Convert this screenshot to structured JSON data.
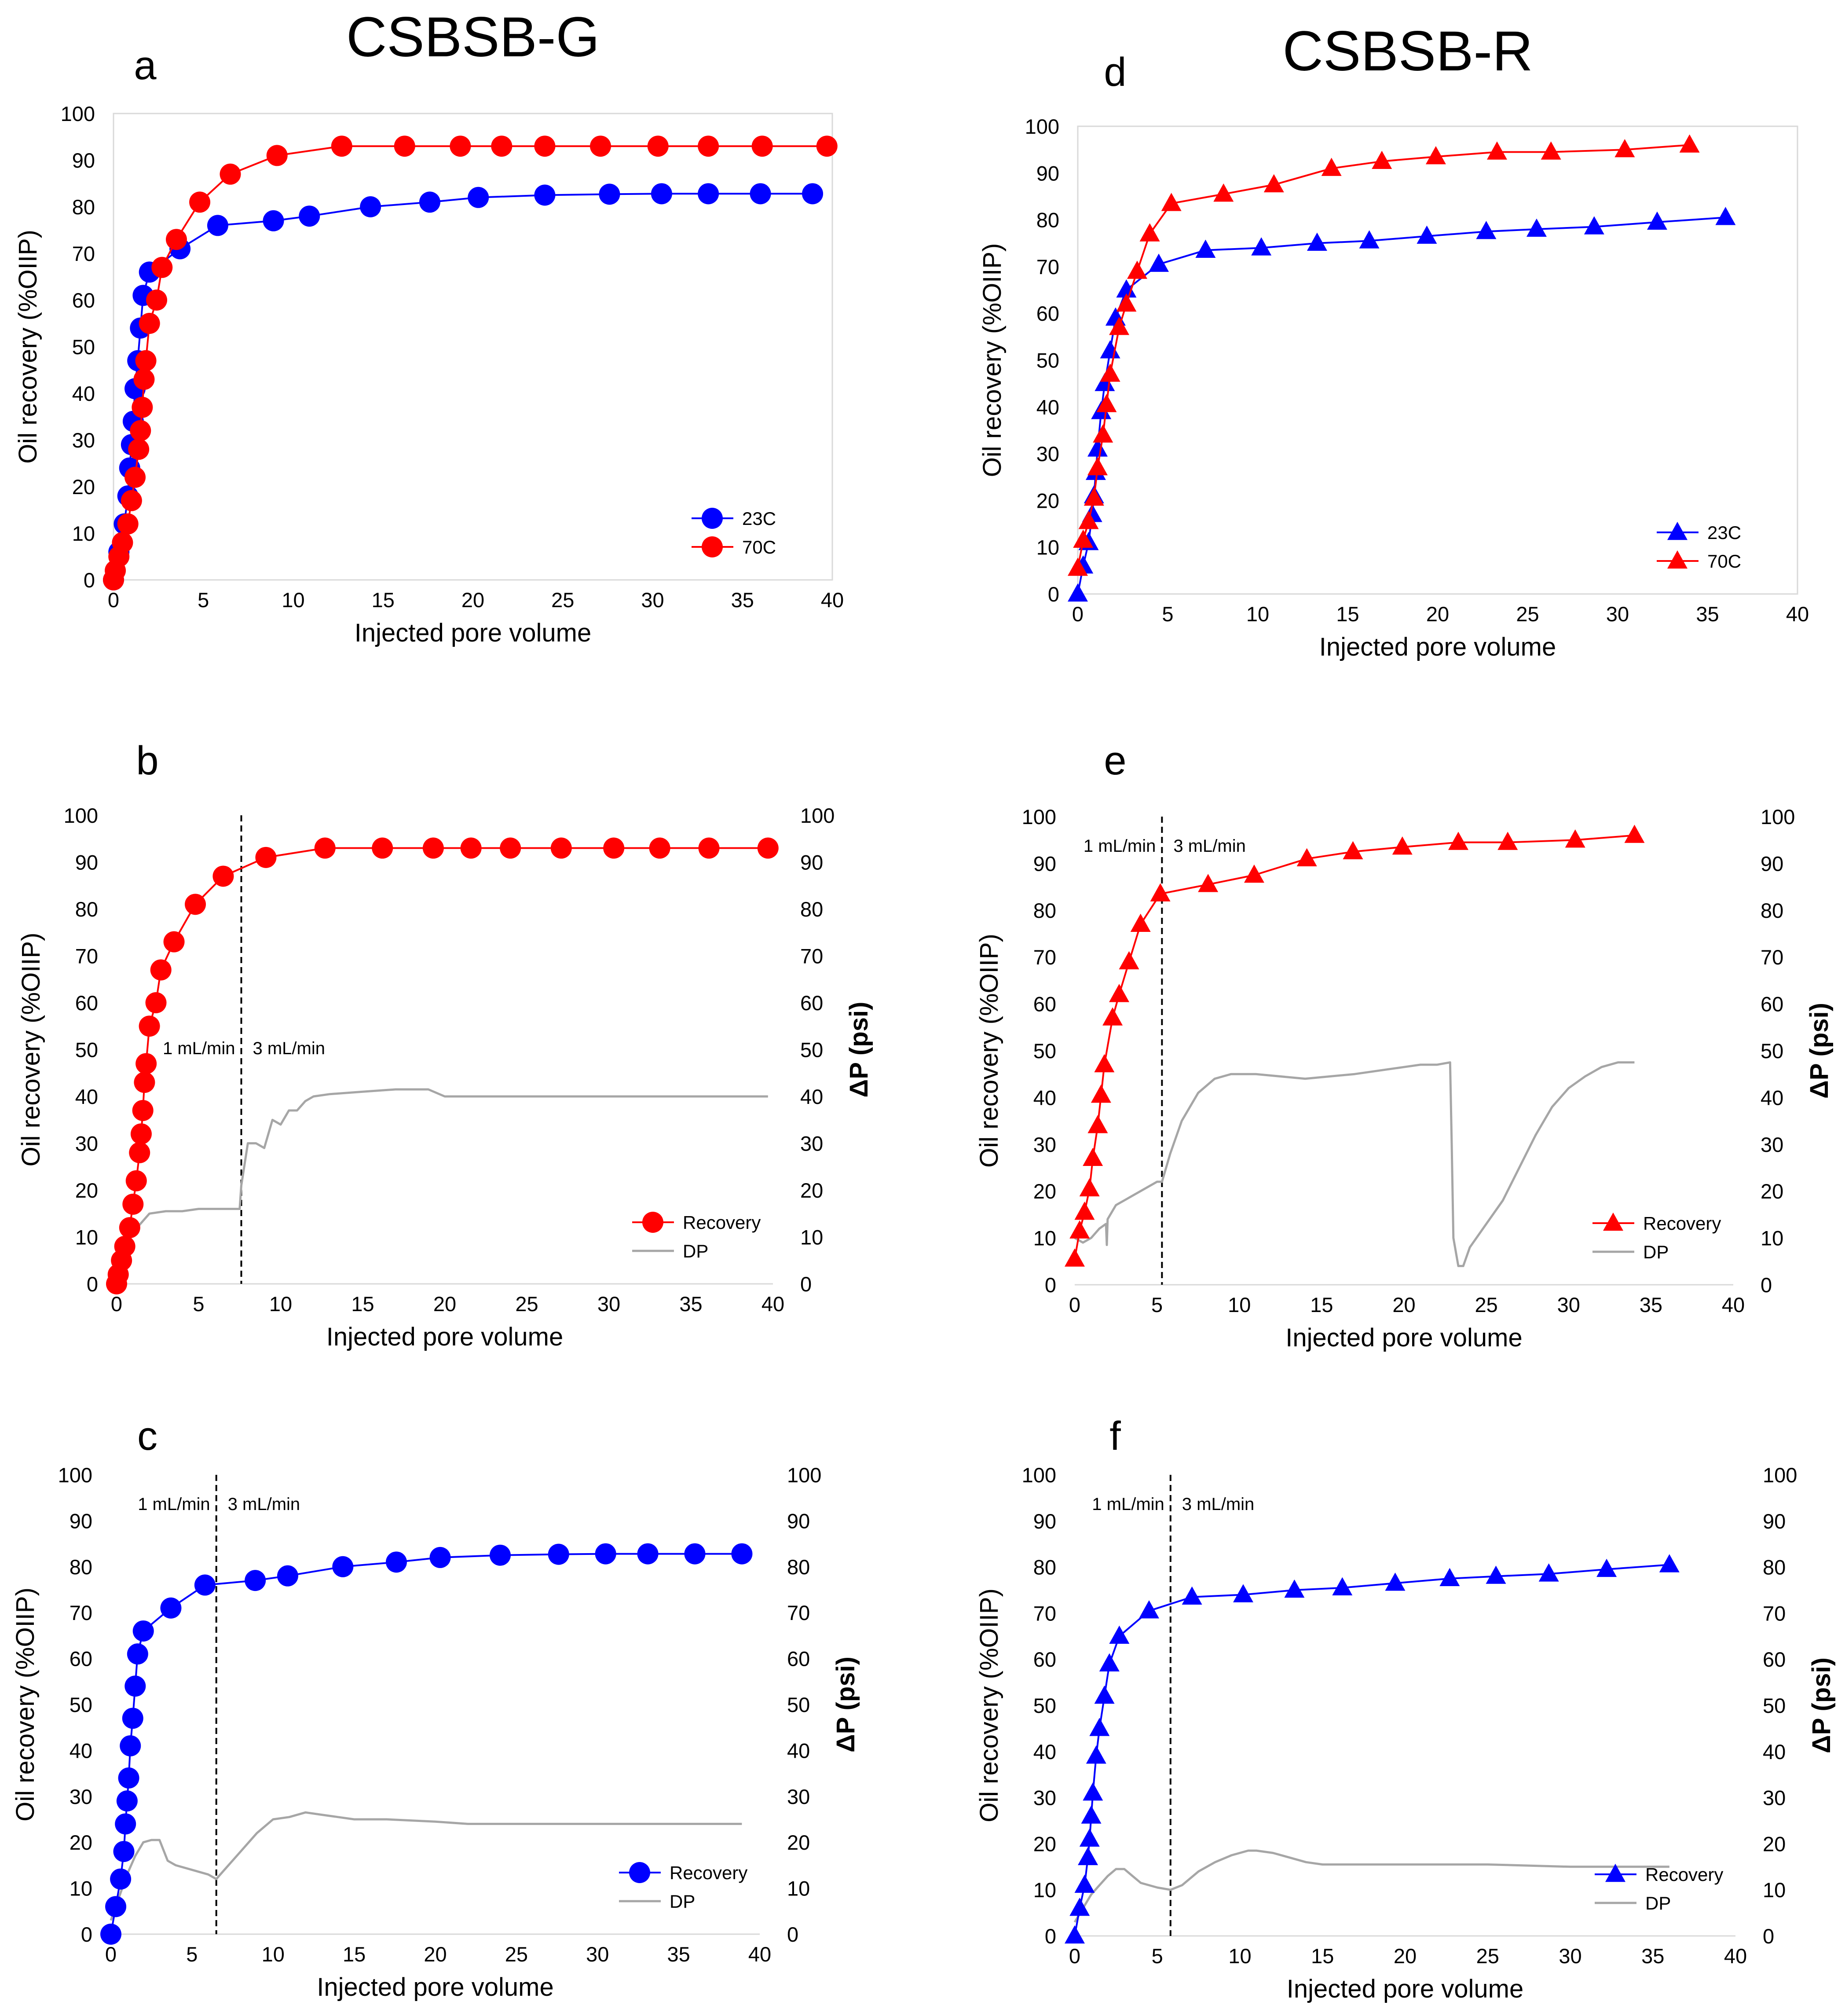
{
  "figure": {
    "left_heading": "CSBSB-G",
    "right_heading": "CSBSB-R"
  },
  "chart_data": [
    {
      "id": "a",
      "type": "line",
      "panel_label": "a",
      "xlabel": "Injected pore volume",
      "ylabel": "Oil recovery (%OIIP)",
      "xlim": [
        0,
        40
      ],
      "xticks": [
        0,
        5,
        10,
        15,
        20,
        25,
        30,
        35,
        40
      ],
      "ylim": [
        0,
        100
      ],
      "yticks": [
        0,
        10,
        20,
        30,
        40,
        50,
        60,
        70,
        80,
        90,
        100
      ],
      "legend": "bottom-right",
      "series": [
        {
          "name": "23C",
          "color": "#0000ff",
          "marker": "circle",
          "x": [
            0,
            0.3,
            0.6,
            0.8,
            0.9,
            1.0,
            1.1,
            1.2,
            1.35,
            1.5,
            1.65,
            2.0,
            3.7,
            5.8,
            8.9,
            10.9,
            14.3,
            17.6,
            20.3,
            24.0,
            27.6,
            30.5,
            33.1,
            36.0,
            38.9
          ],
          "y": [
            0,
            6,
            12,
            18,
            24,
            29,
            34,
            41,
            47,
            54,
            61,
            66,
            71,
            76,
            77,
            78,
            80,
            81,
            82,
            82.5,
            82.7,
            82.8,
            82.8,
            82.8,
            82.8
          ]
        },
        {
          "name": "70C",
          "color": "#ff0000",
          "marker": "circle",
          "x": [
            0,
            0.1,
            0.3,
            0.5,
            0.8,
            1.0,
            1.2,
            1.4,
            1.5,
            1.6,
            1.7,
            1.8,
            2.0,
            2.4,
            2.7,
            3.5,
            4.8,
            6.5,
            9.1,
            12.7,
            16.2,
            19.3,
            21.6,
            24.0,
            27.1,
            30.3,
            33.1,
            36.1,
            39.7
          ],
          "y": [
            0,
            2,
            5,
            8,
            12,
            17,
            22,
            28,
            32,
            37,
            43,
            47,
            55,
            60,
            67,
            73,
            81,
            87,
            91,
            93,
            93,
            93,
            93,
            93,
            93,
            93,
            93,
            93,
            93
          ]
        }
      ]
    },
    {
      "id": "b",
      "type": "line",
      "panel_label": "b",
      "xlabel": "Injected pore volume",
      "ylabel": "Oil recovery (%OIIP)",
      "y2label": "ΔP (psi)",
      "xlim": [
        0,
        40
      ],
      "xticks": [
        0,
        5,
        10,
        15,
        20,
        25,
        30,
        35,
        40
      ],
      "ylim": [
        0,
        100
      ],
      "yticks": [
        0,
        10,
        20,
        30,
        40,
        50,
        60,
        70,
        80,
        90,
        100
      ],
      "y2lim": [
        0,
        100
      ],
      "y2ticks": [
        0,
        10,
        20,
        30,
        40,
        50,
        60,
        70,
        80,
        90,
        100
      ],
      "vline_x": 7.6,
      "annotations": [
        "1 mL/min",
        "3 mL/min"
      ],
      "legend": "bottom-right",
      "series": [
        {
          "name": "Recovery",
          "color": "#ff0000",
          "marker": "circle",
          "x": [
            0,
            0.1,
            0.3,
            0.5,
            0.8,
            1.0,
            1.2,
            1.4,
            1.5,
            1.6,
            1.7,
            1.8,
            2.0,
            2.4,
            2.7,
            3.5,
            4.8,
            6.5,
            9.1,
            12.7,
            16.2,
            19.3,
            21.6,
            24.0,
            27.1,
            30.3,
            33.1,
            36.1,
            39.7
          ],
          "y": [
            0,
            2,
            5,
            8,
            12,
            17,
            22,
            28,
            32,
            37,
            43,
            47,
            55,
            60,
            67,
            73,
            81,
            87,
            91,
            93,
            93,
            93,
            93,
            93,
            93,
            93,
            93,
            93,
            93
          ]
        },
        {
          "name": "DP",
          "color": "#a6a6a6",
          "marker": "none",
          "axis": "y2",
          "x": [
            0,
            0.5,
            1.0,
            1.5,
            2.0,
            3.0,
            4.0,
            5.0,
            6.0,
            7.0,
            7.5,
            7.6,
            8.0,
            8.5,
            9.0,
            9.5,
            10.0,
            10.5,
            11.0,
            11.5,
            12.0,
            13.0,
            15.0,
            17.0,
            19.0,
            20.0,
            25.0,
            30.0,
            35.0,
            39.7
          ],
          "y": [
            6,
            9,
            11,
            13,
            15,
            15.5,
            15.5,
            16,
            16,
            16,
            16,
            21,
            30,
            30,
            29,
            35,
            34,
            37,
            37,
            39,
            40,
            40.5,
            41,
            41.5,
            41.5,
            40,
            40,
            40,
            40,
            40
          ]
        }
      ]
    },
    {
      "id": "c",
      "type": "line",
      "panel_label": "c",
      "xlabel": "Injected pore volume",
      "ylabel": "Oil recovery (%OIIP)",
      "y2label": "ΔP (psi)",
      "xlim": [
        0,
        40
      ],
      "xticks": [
        0,
        5,
        10,
        15,
        20,
        25,
        30,
        35,
        40
      ],
      "ylim": [
        0,
        100
      ],
      "yticks": [
        0,
        10,
        20,
        30,
        40,
        50,
        60,
        70,
        80,
        90,
        100
      ],
      "y2lim": [
        0,
        100
      ],
      "y2ticks": [
        0,
        10,
        20,
        30,
        40,
        50,
        60,
        70,
        80,
        90,
        100
      ],
      "vline_x": 6.5,
      "annotations": [
        "1 mL/min",
        "3 mL/min"
      ],
      "legend": "bottom-right",
      "series": [
        {
          "name": "Recovery",
          "color": "#0000ff",
          "marker": "circle",
          "x": [
            0,
            0.3,
            0.6,
            0.8,
            0.9,
            1.0,
            1.1,
            1.2,
            1.35,
            1.5,
            1.65,
            2.0,
            3.7,
            5.8,
            8.9,
            10.9,
            14.3,
            17.6,
            20.3,
            24.0,
            27.6,
            30.5,
            33.1,
            36.0,
            38.9
          ],
          "y": [
            0,
            6,
            12,
            18,
            24,
            29,
            34,
            41,
            47,
            54,
            61,
            66,
            71,
            76,
            77,
            78,
            80,
            81,
            82,
            82.5,
            82.7,
            82.8,
            82.8,
            82.8,
            82.8
          ]
        },
        {
          "name": "DP",
          "color": "#a6a6a6",
          "marker": "none",
          "axis": "y2",
          "x": [
            0,
            0.5,
            1.0,
            1.5,
            2.0,
            2.5,
            3.0,
            3.5,
            4.0,
            5.0,
            6.0,
            6.5,
            7.0,
            8.0,
            9.0,
            10.0,
            11.0,
            12.0,
            13.0,
            14.0,
            15.0,
            17.0,
            20.0,
            22.0,
            25.0,
            30.0,
            35.0,
            38.9
          ],
          "y": [
            3,
            8,
            13,
            17,
            20,
            20.5,
            20.5,
            16,
            15,
            14,
            13,
            12,
            14,
            18,
            22,
            25,
            25.5,
            26.5,
            26,
            25.5,
            25,
            25,
            24.5,
            24,
            24,
            24,
            24,
            24
          ]
        }
      ]
    },
    {
      "id": "d",
      "type": "line",
      "panel_label": "d",
      "xlabel": "Injected pore volume",
      "ylabel": "Oil recovery (%OIIP)",
      "xlim": [
        0,
        40
      ],
      "xticks": [
        0,
        5,
        10,
        15,
        20,
        25,
        30,
        35,
        40
      ],
      "ylim": [
        0,
        100
      ],
      "yticks": [
        0,
        10,
        20,
        30,
        40,
        50,
        60,
        70,
        80,
        90,
        100
      ],
      "legend": "bottom-right",
      "series": [
        {
          "name": "23C",
          "color": "#0000ff",
          "marker": "triangle",
          "x": [
            0,
            0.3,
            0.6,
            0.8,
            0.9,
            1.0,
            1.1,
            1.3,
            1.5,
            1.8,
            2.1,
            2.7,
            4.5,
            7.1,
            10.2,
            13.3,
            16.2,
            19.4,
            22.7,
            25.5,
            28.7,
            32.2,
            36.0
          ],
          "y": [
            0,
            6,
            11,
            17,
            21,
            26,
            31,
            39,
            45,
            52,
            59,
            65,
            70.5,
            73.5,
            74,
            75,
            75.5,
            76.5,
            77.5,
            78,
            78.5,
            79.5,
            80.5
          ]
        },
        {
          "name": "70C",
          "color": "#ff0000",
          "marker": "triangle",
          "x": [
            0,
            0.3,
            0.6,
            0.9,
            1.1,
            1.4,
            1.6,
            1.8,
            2.3,
            2.7,
            3.3,
            4.0,
            5.2,
            8.1,
            10.9,
            14.1,
            16.9,
            19.9,
            23.3,
            26.3,
            30.4,
            34.0
          ],
          "y": [
            5.5,
            11.5,
            15.5,
            20.5,
            27,
            34,
            40.5,
            47,
            57,
            62,
            69,
            77,
            83.5,
            85.5,
            87.5,
            91,
            92.5,
            93.5,
            94.5,
            94.5,
            95,
            96
          ]
        }
      ]
    },
    {
      "id": "e",
      "type": "line",
      "panel_label": "e",
      "xlabel": "Injected pore volume",
      "ylabel": "Oil recovery (%OIIP)",
      "y2label": "ΔP (psi)",
      "xlim": [
        0,
        40
      ],
      "xticks": [
        0,
        5,
        10,
        15,
        20,
        25,
        30,
        35,
        40
      ],
      "ylim": [
        0,
        100
      ],
      "yticks": [
        0,
        10,
        20,
        30,
        40,
        50,
        60,
        70,
        80,
        90,
        100
      ],
      "y2lim": [
        0,
        100
      ],
      "y2ticks": [
        0,
        10,
        20,
        30,
        40,
        50,
        60,
        70,
        80,
        90,
        100
      ],
      "vline_x": 5.3,
      "annotations": [
        "1 mL/min",
        "3 mL/min"
      ],
      "legend": "bottom-right",
      "series": [
        {
          "name": "Recovery",
          "color": "#ff0000",
          "marker": "triangle",
          "x": [
            0,
            0.3,
            0.6,
            0.9,
            1.1,
            1.4,
            1.6,
            1.8,
            2.3,
            2.7,
            3.3,
            4.0,
            5.2,
            8.1,
            10.9,
            14.1,
            16.9,
            19.9,
            23.3,
            26.3,
            30.4,
            34.0
          ],
          "y": [
            5.5,
            11.5,
            15.5,
            20.5,
            27,
            34,
            40.5,
            47,
            57,
            62,
            69,
            77,
            83.5,
            85.5,
            87.5,
            91,
            92.5,
            93.5,
            94.5,
            94.5,
            95,
            96
          ]
        },
        {
          "name": "DP",
          "color": "#a6a6a6",
          "marker": "none",
          "axis": "y2",
          "x": [
            0,
            0.5,
            1.0,
            1.5,
            1.9,
            1.95,
            2.0,
            2.5,
            3.0,
            3.5,
            4.0,
            4.5,
            5.0,
            5.3,
            5.8,
            6.5,
            7.5,
            8.5,
            9.5,
            11.0,
            14.0,
            17.0,
            20.0,
            21.0,
            22.0,
            22.8,
            22.9,
            23.0,
            23.3,
            23.6,
            24.0,
            25.0,
            26.0,
            27.0,
            28.0,
            29.0,
            30.0,
            31.0,
            32.0,
            33.0,
            34.0
          ],
          "y": [
            10,
            9,
            10,
            12,
            13,
            8.5,
            14,
            17,
            18,
            19,
            20,
            21,
            22,
            22,
            28,
            35,
            41,
            44,
            45,
            45,
            44,
            45,
            46.5,
            47,
            47,
            47.5,
            30,
            10,
            4,
            4,
            8,
            13,
            18,
            25,
            32,
            38,
            42,
            44.5,
            46.5,
            47.5,
            47.5
          ]
        }
      ]
    },
    {
      "id": "f",
      "type": "line",
      "panel_label": "f",
      "xlabel": "Injected pore volume",
      "ylabel": "Oil recovery (%OIIP)",
      "y2label": "ΔP (psi)",
      "xlim": [
        0,
        40
      ],
      "xticks": [
        0,
        5,
        10,
        15,
        20,
        25,
        30,
        35,
        40
      ],
      "ylim": [
        0,
        100
      ],
      "yticks": [
        0,
        10,
        20,
        30,
        40,
        50,
        60,
        70,
        80,
        90,
        100
      ],
      "y2lim": [
        0,
        100
      ],
      "y2ticks": [
        0,
        10,
        20,
        30,
        40,
        50,
        60,
        70,
        80,
        90,
        100
      ],
      "vline_x": 5.8,
      "annotations": [
        "1 mL/min",
        "3 mL/min"
      ],
      "legend": "bottom-right",
      "series": [
        {
          "name": "Recovery",
          "color": "#0000ff",
          "marker": "triangle",
          "x": [
            0,
            0.3,
            0.6,
            0.8,
            0.9,
            1.0,
            1.1,
            1.3,
            1.5,
            1.8,
            2.1,
            2.7,
            4.5,
            7.1,
            10.2,
            13.3,
            16.2,
            19.4,
            22.7,
            25.5,
            28.7,
            32.2,
            36.0
          ],
          "y": [
            0,
            6,
            11,
            17,
            21,
            26,
            31,
            39,
            45,
            52,
            59,
            65,
            70.5,
            73.5,
            74,
            75,
            75.5,
            76.5,
            77.5,
            78,
            78.5,
            79.5,
            80.5
          ]
        },
        {
          "name": "DP",
          "color": "#a6a6a6",
          "marker": "none",
          "axis": "y2",
          "x": [
            0,
            0.5,
            1.0,
            1.5,
            2.0,
            2.5,
            3.0,
            3.5,
            4.0,
            5.0,
            5.8,
            6.5,
            7.5,
            8.5,
            9.5,
            10.5,
            11.0,
            12.0,
            13.0,
            14.0,
            15.0,
            17.0,
            19.0,
            20.0,
            25.0,
            30.0,
            35.0,
            36.0
          ],
          "y": [
            3,
            6,
            9,
            11,
            13,
            14.5,
            14.5,
            13,
            11.5,
            10.5,
            10,
            11,
            14,
            16,
            17.5,
            18.5,
            18.5,
            18,
            17,
            16,
            15.5,
            15.5,
            15.5,
            15.5,
            15.5,
            15,
            15,
            15
          ]
        }
      ]
    }
  ]
}
